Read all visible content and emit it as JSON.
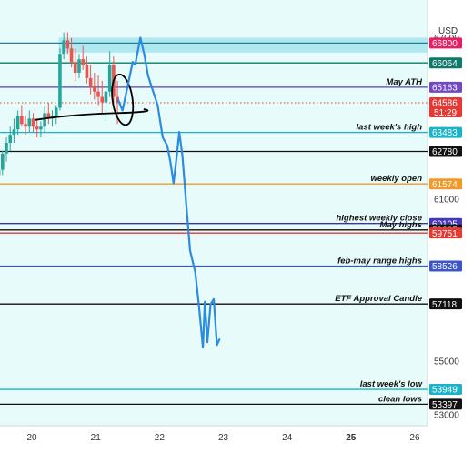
{
  "currency_label": "USD",
  "chart_data": {
    "type": "line",
    "y_axis": {
      "min": 52600,
      "max": 68400,
      "tick_labels": [
        {
          "value": 67000,
          "text": "67000"
        },
        {
          "value": 61000,
          "text": "61000"
        },
        {
          "value": 55000,
          "text": "55000"
        },
        {
          "value": 53000,
          "text": "53000"
        }
      ]
    },
    "x_axis": {
      "min": 19.5,
      "max": 26.2,
      "ticks": [
        {
          "value": 20,
          "text": "20",
          "bold": false
        },
        {
          "value": 21,
          "text": "21",
          "bold": false
        },
        {
          "value": 22,
          "text": "22",
          "bold": false
        },
        {
          "value": 23,
          "text": "23",
          "bold": false
        },
        {
          "value": 24,
          "text": "24",
          "bold": false
        },
        {
          "value": 25,
          "text": "25",
          "bold": true
        },
        {
          "value": 26,
          "text": "26",
          "bold": false
        }
      ]
    },
    "zone": {
      "from": 66450,
      "to": 67000,
      "color": "#a6e4ee"
    },
    "levels": [
      {
        "price": 66800,
        "price_label": "66800",
        "label": "",
        "color": "#2a7d8c",
        "badge": "#e91e63"
      },
      {
        "price": 66064,
        "price_label": "66064",
        "label": "",
        "color": "#0f7a6a",
        "badge": "#0f7a6a"
      },
      {
        "price": 65163,
        "price_label": "65163",
        "label": "May ATH",
        "color": "#5b3fb5",
        "badge": "#7048c0"
      },
      {
        "price": 63483,
        "price_label": "63483",
        "label": "last week's high",
        "color": "#1cb3c8",
        "badge": "#1cb3c8"
      },
      {
        "price": 62780,
        "price_label": "62780",
        "label": "",
        "color": "#111111",
        "badge": "#111111"
      },
      {
        "price": 61574,
        "price_label": "61574",
        "label": "weekly open",
        "color": "#ef9a2a",
        "badge": "#ef9a2a"
      },
      {
        "price": 60105,
        "price_label": "60105",
        "label": "highest weekly close",
        "color": "#3a33a8",
        "badge": "#4438b8"
      },
      {
        "price": 59865,
        "price_label": "59865",
        "label": "May highs",
        "color": "#111111",
        "badge": "#111111"
      },
      {
        "price": 59751,
        "price_label": "59751",
        "label": "",
        "color": "#e53935",
        "badge": "#e53935"
      },
      {
        "price": 58526,
        "price_label": "58526",
        "label": "feb-may range highs",
        "color": "#3a56c8",
        "badge": "#3a56c8"
      },
      {
        "price": 57118,
        "price_label": "57118",
        "label": "ETF Approval Candle",
        "color": "#111111",
        "badge": "#111111"
      },
      {
        "price": 53949,
        "price_label": "53949",
        "label": "last week's low",
        "color": "#1cb3c8",
        "badge": "#1cb3c8"
      },
      {
        "price": 53397,
        "price_label": "53397",
        "label": "clean lows",
        "color": "#111111",
        "badge": "#111111"
      }
    ],
    "current_price": {
      "price": 64586,
      "price_label": "64586",
      "countdown": "51:29",
      "color": "#e53935"
    },
    "projected_path": [
      [
        21.35,
        64700
      ],
      [
        21.42,
        64300
      ],
      [
        21.5,
        65200
      ],
      [
        21.58,
        66100
      ],
      [
        21.62,
        66000
      ],
      [
        21.7,
        67000
      ],
      [
        21.76,
        66400
      ],
      [
        21.82,
        65600
      ],
      [
        21.9,
        65000
      ],
      [
        21.97,
        64500
      ],
      [
        22.05,
        63300
      ],
      [
        22.12,
        63000
      ],
      [
        22.17,
        62400
      ],
      [
        22.22,
        61600
      ],
      [
        22.27,
        62600
      ],
      [
        22.31,
        63500
      ],
      [
        22.36,
        62600
      ],
      [
        22.42,
        60800
      ],
      [
        22.48,
        59100
      ],
      [
        22.56,
        58300
      ],
      [
        22.62,
        57000
      ],
      [
        22.68,
        55500
      ],
      [
        22.71,
        57200
      ],
      [
        22.75,
        55700
      ],
      [
        22.8,
        57100
      ],
      [
        22.85,
        57300
      ],
      [
        22.9,
        55600
      ],
      [
        22.94,
        55800
      ]
    ],
    "candles": [
      [
        19.42,
        62200,
        62900,
        61400,
        61900
      ],
      [
        19.48,
        61900,
        62300,
        61100,
        62100
      ],
      [
        19.54,
        62100,
        62800,
        61900,
        62700
      ],
      [
        19.6,
        62700,
        63300,
        62400,
        63100
      ],
      [
        19.66,
        63100,
        63700,
        62800,
        63400
      ],
      [
        19.72,
        63400,
        64000,
        63100,
        63600
      ],
      [
        19.78,
        63600,
        64300,
        63400,
        64100
      ],
      [
        19.84,
        64100,
        64500,
        63700,
        63800
      ],
      [
        19.9,
        63800,
        64100,
        63400,
        63700
      ],
      [
        19.96,
        63700,
        64300,
        63500,
        64000
      ],
      [
        20.02,
        64000,
        64200,
        63500,
        63700
      ],
      [
        20.08,
        63700,
        64000,
        63300,
        63600
      ],
      [
        20.14,
        63600,
        63900,
        63300,
        63700
      ],
      [
        20.2,
        63700,
        64500,
        63500,
        64200
      ],
      [
        20.26,
        64200,
        64600,
        63800,
        64000
      ],
      [
        20.32,
        64000,
        64300,
        63700,
        64100
      ],
      [
        20.38,
        64100,
        64500,
        63800,
        64400
      ],
      [
        20.44,
        64400,
        66600,
        64300,
        66400
      ],
      [
        20.5,
        66400,
        67200,
        66200,
        66900
      ],
      [
        20.56,
        66900,
        67200,
        66400,
        66600
      ],
      [
        20.62,
        66600,
        67000,
        65900,
        66100
      ],
      [
        20.68,
        66100,
        66600,
        65400,
        65700
      ],
      [
        20.74,
        65700,
        66400,
        65500,
        66200
      ],
      [
        20.8,
        66200,
        66700,
        65800,
        66000
      ],
      [
        20.86,
        66000,
        66300,
        65300,
        65500
      ],
      [
        20.92,
        65500,
        66000,
        64900,
        65200
      ],
      [
        20.98,
        65200,
        65700,
        64700,
        65000
      ],
      [
        21.04,
        65000,
        65600,
        64500,
        64800
      ],
      [
        21.1,
        64800,
        65400,
        64200,
        64600
      ],
      [
        21.16,
        64600,
        65300,
        63900,
        65000
      ],
      [
        21.22,
        65000,
        66500,
        64800,
        66000
      ],
      [
        21.28,
        66000,
        66300,
        64500,
        64800
      ],
      [
        21.34,
        64800,
        65400,
        63800,
        64586
      ]
    ],
    "annotations": [
      {
        "type": "circle",
        "x": 21.42,
        "y": 64700
      },
      {
        "type": "curve"
      }
    ]
  }
}
